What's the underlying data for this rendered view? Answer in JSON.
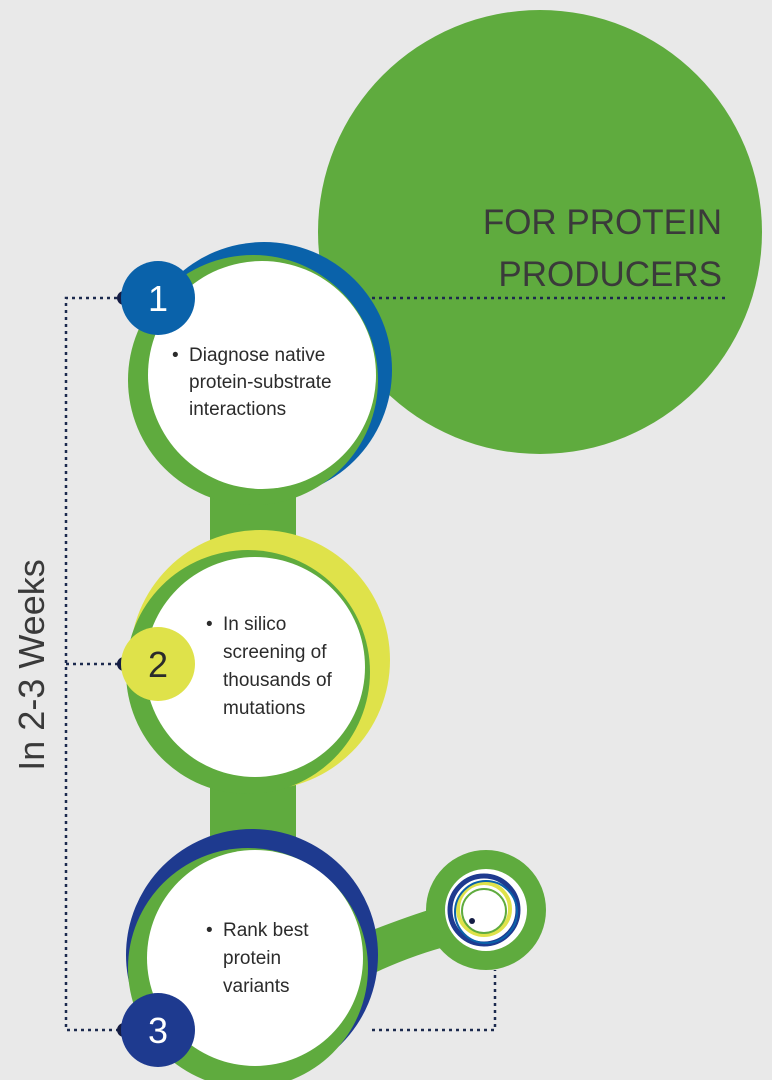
{
  "header": {
    "line1": "FOR PROTEIN",
    "line2": "PRODUCERS"
  },
  "side_label": "In 2-3 Weeks",
  "steps": [
    {
      "number": "1",
      "bullet": "•",
      "lines": [
        "Diagnose native",
        "protein-substrate",
        "interactions"
      ],
      "accent_color": "#0a62aa"
    },
    {
      "number": "2",
      "bullet": "•",
      "lines": [
        "In silico",
        "screening of",
        "thousands of",
        "mutations"
      ],
      "accent_color": "#dfe24a"
    },
    {
      "number": "3",
      "bullet": "•",
      "lines": [
        "Rank best",
        "protein",
        "variants"
      ],
      "accent_color": "#1e3a8f"
    }
  ],
  "colors": {
    "background": "#e9e9e9",
    "green": "#5fab3e",
    "blue": "#0a62aa",
    "yellow": "#dfe24a",
    "navy": "#1e3a8f",
    "dark_dot": "#141c44",
    "text": "#2b2b2b"
  }
}
